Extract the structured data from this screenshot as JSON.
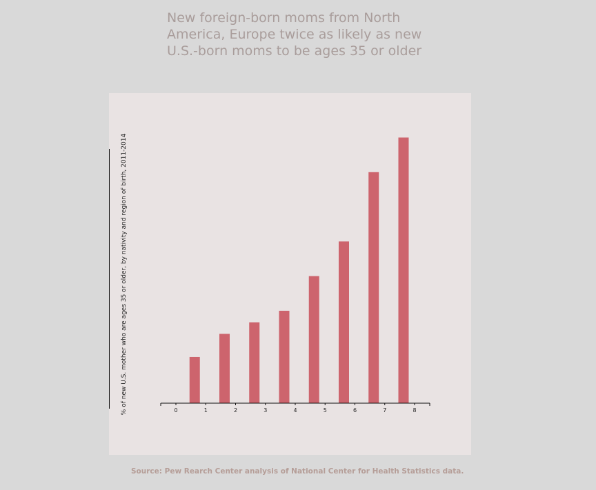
{
  "title": "New foreign-born moms from North America, Europe twice as likely as new U.S.-born moms to be ages 35 or older",
  "source": "Source: Pew Rearch Center analysis of National Center for Health Statistics data.",
  "colors": {
    "bar": "#cd646d",
    "panel": "#e9e3e3",
    "background": "#d9d9d9"
  },
  "chart_data": {
    "type": "bar",
    "title": "New foreign-born moms from North America, Europe twice as likely as new U.S.-born moms to be ages 35 or older",
    "ylabel": "% of new U.S. mother who are ages 35 or older, by nativity and region of birth, 2011-2014",
    "xlabel": "",
    "x_ticks": [
      "0",
      "1",
      "2",
      "3",
      "4",
      "5",
      "6",
      "7",
      "8"
    ],
    "categories": [
      "1",
      "2",
      "3",
      "4",
      "5",
      "6",
      "7",
      "8"
    ],
    "values": [
      8,
      12,
      14,
      16,
      22,
      28,
      40,
      46
    ],
    "xlim": [
      0,
      8
    ],
    "ylim": [
      0,
      50
    ],
    "grid": false,
    "legend": "none"
  }
}
